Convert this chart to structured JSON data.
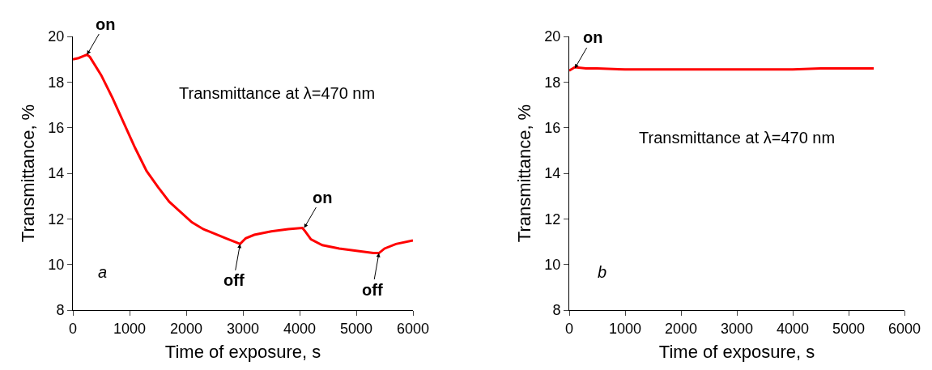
{
  "chart_data": [
    {
      "type": "line",
      "xlabel": "Time of exposure, s",
      "ylabel": "Transmittance, %",
      "x": [
        0,
        100,
        200,
        250,
        300,
        500,
        700,
        900,
        1100,
        1300,
        1500,
        1700,
        1900,
        2100,
        2300,
        2500,
        2700,
        2900,
        2950,
        3050,
        3200,
        3500,
        3800,
        4050,
        4100,
        4200,
        4400,
        4700,
        5000,
        5300,
        5400,
        5500,
        5700,
        6000
      ],
      "series": [
        {
          "color": "#ff0000",
          "values": [
            19.0,
            19.05,
            19.15,
            19.2,
            19.1,
            18.3,
            17.3,
            16.2,
            15.1,
            14.1,
            13.4,
            12.75,
            12.3,
            11.85,
            11.55,
            11.35,
            11.15,
            10.95,
            10.9,
            11.15,
            11.3,
            11.45,
            11.55,
            11.6,
            11.45,
            11.1,
            10.85,
            10.7,
            10.6,
            10.5,
            10.5,
            10.7,
            10.9,
            11.05
          ]
        }
      ],
      "xlim": [
        0,
        6000
      ],
      "xticks": [
        0,
        1000,
        2000,
        3000,
        4000,
        5000,
        6000
      ],
      "ylim": [
        8,
        20
      ],
      "yticks": [
        8,
        10,
        12,
        14,
        16,
        18,
        20
      ],
      "annotations": [
        "Transmittance at λ=470 nm",
        "a",
        {
          "text": "on",
          "x": 250,
          "y": 19.2
        },
        {
          "text": "off",
          "x": 2950,
          "y": 10.9
        },
        {
          "text": "on",
          "x": 4080,
          "y": 11.6
        },
        {
          "text": "off",
          "x": 5400,
          "y": 10.5
        }
      ],
      "grid": false,
      "marker": "none",
      "line_style": "solid"
    },
    {
      "type": "line",
      "xlabel": "Time of exposure, s",
      "ylabel": "Transmittance, %",
      "x": [
        0,
        100,
        300,
        500,
        1000,
        1500,
        2000,
        2500,
        3000,
        3500,
        4000,
        4500,
        5000,
        5450
      ],
      "series": [
        {
          "color": "#ff0000",
          "values": [
            18.5,
            18.65,
            18.6,
            18.6,
            18.55,
            18.55,
            18.55,
            18.55,
            18.55,
            18.55,
            18.55,
            18.6,
            18.6,
            18.6
          ]
        }
      ],
      "xlim": [
        0,
        6000
      ],
      "xticks": [
        0,
        1000,
        2000,
        3000,
        4000,
        5000,
        6000
      ],
      "ylim": [
        8,
        20
      ],
      "yticks": [
        8,
        10,
        12,
        14,
        16,
        18,
        20
      ],
      "annotations": [
        "Transmittance at λ=470 nm",
        "b",
        {
          "text": "on",
          "x": 100,
          "y": 18.6
        }
      ],
      "grid": false,
      "marker": "none",
      "line_style": "solid"
    }
  ]
}
